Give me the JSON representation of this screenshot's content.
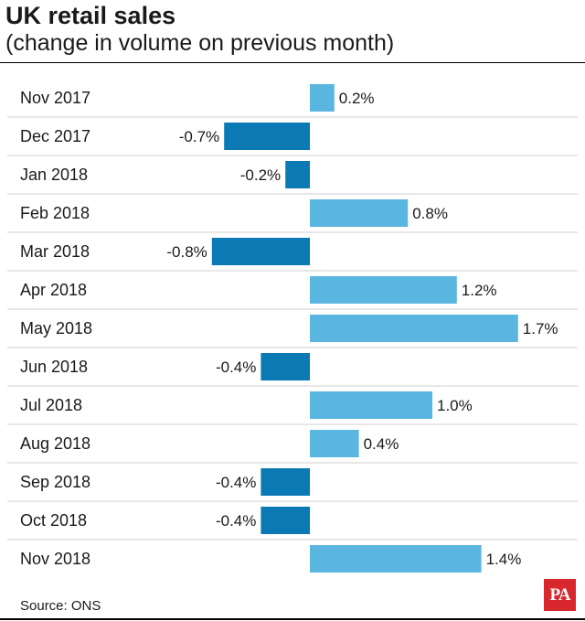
{
  "header": {
    "title": "UK retail sales",
    "subtitle": "(change in volume on previous month)"
  },
  "footer": {
    "source": "Source: ONS",
    "logo_text": "PA"
  },
  "colors": {
    "positive": "#5ab6e0",
    "negative": "#0a79b4",
    "separator": "#cfcfcf"
  },
  "chart_data": {
    "type": "bar",
    "orientation": "horizontal",
    "categories": [
      "Nov 2017",
      "Dec 2017",
      "Jan 2018",
      "Feb 2018",
      "Mar 2018",
      "Apr 2018",
      "May 2018",
      "Jun 2018",
      "Jul 2018",
      "Aug 2018",
      "Sep 2018",
      "Oct 2018",
      "Nov 2018"
    ],
    "values": [
      0.2,
      -0.7,
      -0.2,
      0.8,
      -0.8,
      1.2,
      1.7,
      -0.4,
      1.0,
      0.4,
      -0.4,
      -0.4,
      1.4
    ],
    "labels": [
      "0.2%",
      "-0.7%",
      "-0.2%",
      "0.8%",
      "-0.8%",
      "1.2%",
      "1.7%",
      "-0.4%",
      "1.0%",
      "0.4%",
      "-0.4%",
      "-0.4%",
      "1.4%"
    ],
    "unit": "%",
    "title": "UK retail sales",
    "subtitle": "(change in volume on previous month)",
    "xlabel": "",
    "ylabel": "",
    "grid": false,
    "legend": false
  }
}
